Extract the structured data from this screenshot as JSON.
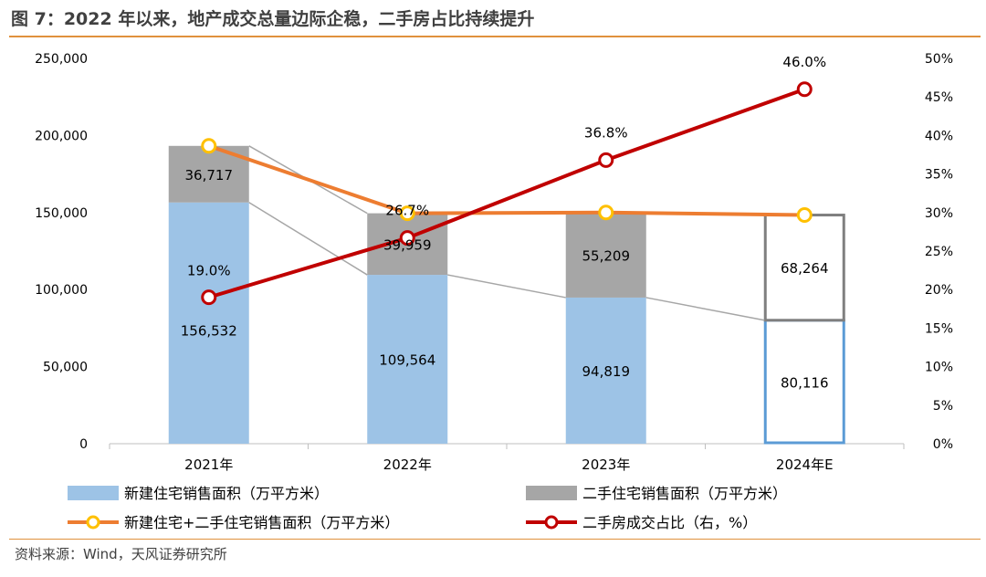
{
  "title": "图 7：2022 年以来，地产成交总量边际企稳，二手房占比持续提升",
  "source": "资料来源：Wind，天风证券研究所",
  "chart_data": {
    "type": "bar",
    "categories": [
      "2021年",
      "2022年",
      "2023年",
      "2024年E"
    ],
    "series": [
      {
        "name": "新建住宅销售面积（万平方米）",
        "kind": "stacked-bar",
        "axis": "left",
        "values": [
          156532,
          109564,
          94819,
          80116
        ],
        "labels": [
          "156,532",
          "109,564",
          "94,819",
          "80,116"
        ]
      },
      {
        "name": "二手住宅销售面积（万平方米）",
        "kind": "stacked-bar",
        "axis": "left",
        "values": [
          36717,
          39959,
          55209,
          68264
        ],
        "labels": [
          "36,717",
          "39,959",
          "55,209",
          "68,264"
        ]
      },
      {
        "name": "新建住宅+二手住宅销售面积（万平方米）",
        "kind": "line",
        "axis": "left",
        "values": [
          193249,
          149523,
          150028,
          148380
        ]
      },
      {
        "name": "二手房成交占比（右，%）",
        "kind": "line",
        "axis": "right",
        "values": [
          19.0,
          26.7,
          36.8,
          46.0
        ],
        "labels": [
          "19.0%",
          "26.7%",
          "36.8%",
          "46.0%"
        ]
      }
    ],
    "y_left": {
      "min": 0,
      "max": 250000,
      "step": 50000,
      "ticks": [
        "0",
        "50,000",
        "100,000",
        "150,000",
        "200,000",
        "250,000"
      ]
    },
    "y_right": {
      "min": 0,
      "max": 50,
      "step": 5,
      "ticks": [
        "0%",
        "5%",
        "10%",
        "15%",
        "20%",
        "25%",
        "30%",
        "35%",
        "40%",
        "45%",
        "50%"
      ]
    },
    "forecast_category": "2024年E",
    "legend_position": "bottom",
    "colors": {
      "new": "#9dc3e6",
      "second": "#a6a6a6",
      "total": "#ed7d31",
      "total_marker": "#ffc000",
      "share": "#c00000",
      "forecast_new_border": "#5b9bd5",
      "forecast_second_border": "#7f7f7f"
    }
  }
}
